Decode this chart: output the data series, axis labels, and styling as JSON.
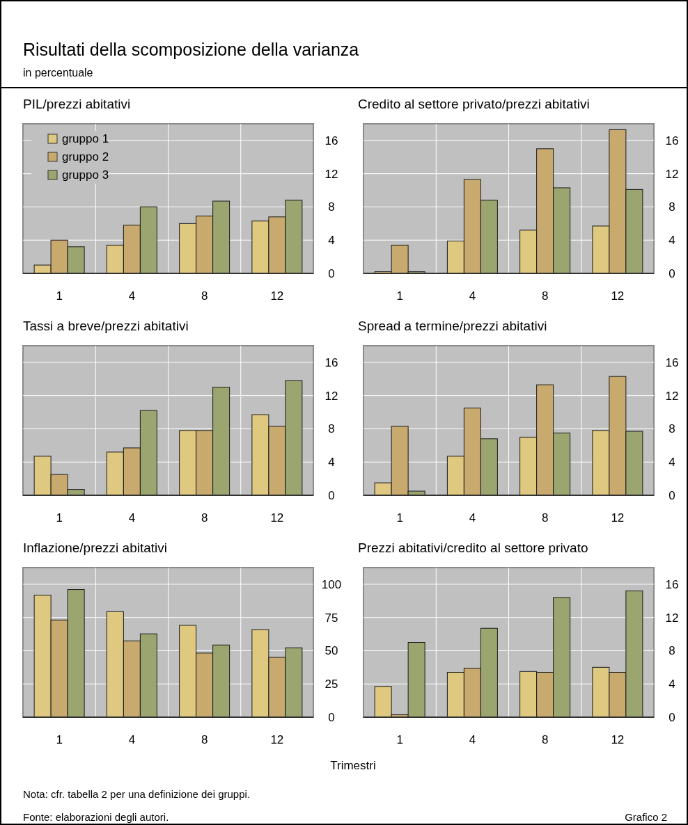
{
  "chart_data": [
    {
      "type": "bar",
      "title": "PIL/prezzi abitativi",
      "categories": [
        "1",
        "4",
        "8",
        "12"
      ],
      "ylim": [
        0,
        18
      ],
      "yticks": [
        0,
        4,
        8,
        12,
        16
      ],
      "grid": true,
      "legend": "top left",
      "annotations": [
        "Risultati della scomposizione della varianza",
        "in percentuale"
      ],
      "series": [
        {
          "name": "gruppo 1",
          "color": "#dfc981",
          "values": [
            1.0,
            3.4,
            6.0,
            6.3
          ]
        },
        {
          "name": "gruppo 2",
          "color": "#c9aa6e",
          "values": [
            4.0,
            5.8,
            6.9,
            6.8
          ]
        },
        {
          "name": "gruppo 3",
          "color": "#9ba56f",
          "values": [
            3.2,
            8.0,
            8.7,
            8.8
          ]
        }
      ]
    },
    {
      "type": "bar",
      "title": "Credito al settore privato/prezzi abitativi",
      "categories": [
        "1",
        "4",
        "8",
        "12"
      ],
      "ylim": [
        0,
        18
      ],
      "yticks": [
        0,
        4,
        8,
        12,
        16
      ],
      "grid": true,
      "series": [
        {
          "color": "#dfc981",
          "values": [
            0.2,
            3.9,
            5.2,
            5.7
          ]
        },
        {
          "color": "#c9aa6e",
          "values": [
            3.4,
            11.3,
            15.0,
            17.3
          ]
        },
        {
          "color": "#9ba56f",
          "values": [
            0.2,
            8.8,
            10.3,
            10.1
          ]
        }
      ]
    },
    {
      "type": "bar",
      "title": "Tassi a breve/prezzi abitativi",
      "categories": [
        "1",
        "4",
        "8",
        "12"
      ],
      "ylim": [
        0,
        18
      ],
      "yticks": [
        0,
        4,
        8,
        12,
        16
      ],
      "grid": true,
      "series": [
        {
          "color": "#dfc981",
          "values": [
            4.7,
            5.2,
            7.8,
            9.7
          ]
        },
        {
          "color": "#c9aa6e",
          "values": [
            2.5,
            5.7,
            7.8,
            8.3
          ]
        },
        {
          "color": "#9ba56f",
          "values": [
            0.7,
            10.2,
            13.0,
            13.8
          ]
        }
      ]
    },
    {
      "type": "bar",
      "title": "Spread a termine/prezzi abitativi",
      "categories": [
        "1",
        "4",
        "8",
        "12"
      ],
      "ylim": [
        0,
        18
      ],
      "yticks": [
        0,
        4,
        8,
        12,
        16
      ],
      "grid": true,
      "series": [
        {
          "color": "#dfc981",
          "values": [
            1.5,
            4.7,
            7.0,
            7.8
          ]
        },
        {
          "color": "#c9aa6e",
          "values": [
            8.3,
            10.5,
            13.3,
            14.3
          ]
        },
        {
          "color": "#9ba56f",
          "values": [
            0.5,
            6.8,
            7.5,
            7.7
          ]
        }
      ]
    },
    {
      "type": "bar",
      "title": "Inflazione/prezzi abitativi",
      "categories": [
        "1",
        "4",
        "8",
        "12"
      ],
      "ylim": [
        0,
        112.5
      ],
      "yticks": [
        0,
        25,
        50,
        75,
        100
      ],
      "grid": true,
      "series": [
        {
          "color": "#dfc981",
          "values": [
            91.8,
            79.4,
            69.1,
            65.8
          ]
        },
        {
          "color": "#c9aa6e",
          "values": [
            73.1,
            57.4,
            48.2,
            45.0
          ]
        },
        {
          "color": "#9ba56f",
          "values": [
            96.0,
            62.7,
            54.3,
            52.2
          ]
        }
      ]
    },
    {
      "type": "bar",
      "title": "Prezzi abitativi/credito al settore privato",
      "categories": [
        "1",
        "4",
        "8",
        "12"
      ],
      "ylim": [
        0,
        18
      ],
      "yticks": [
        0,
        4,
        8,
        12,
        16
      ],
      "grid": true,
      "xlabel": "Trimestri",
      "series": [
        {
          "color": "#dfc981",
          "values": [
            3.7,
            5.4,
            5.5,
            6.0
          ]
        },
        {
          "color": "#c9aa6e",
          "values": [
            0.3,
            5.9,
            5.4,
            5.4
          ]
        },
        {
          "color": "#9ba56f",
          "values": [
            9.0,
            10.7,
            14.4,
            15.2
          ]
        }
      ],
      "annotations": [
        "Nota: cfr. tabella 2 per una definizione dei gruppi.",
        "Fonte: elaborazioni degli autori.",
        "Grafico 2"
      ]
    }
  ]
}
